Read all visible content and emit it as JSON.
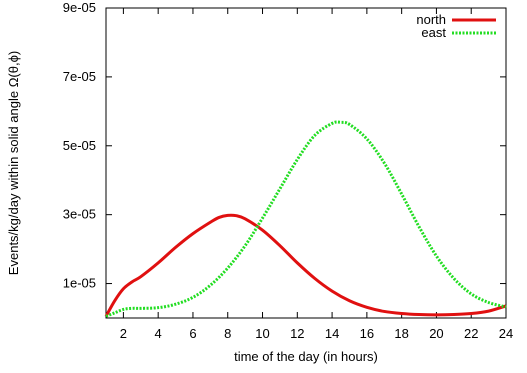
{
  "chart_data": {
    "type": "line",
    "title": "",
    "xlabel": "time of the day (in hours)",
    "ylabel": "Events/kg/day within solid angle Ω(θ,ϕ)",
    "xlim": [
      1,
      24
    ],
    "ylim": [
      0,
      9e-05
    ],
    "xticks": [
      2,
      4,
      6,
      8,
      10,
      12,
      14,
      16,
      18,
      20,
      22,
      24
    ],
    "xtick_labels": [
      "2",
      "4",
      "6",
      "8",
      "10",
      "12",
      "14",
      "16",
      "18",
      "20",
      "22",
      "24"
    ],
    "yticks": [
      1e-05,
      3e-05,
      5e-05,
      7e-05,
      9e-05
    ],
    "ytick_labels": [
      "1e-05",
      "3e-05",
      "5e-05",
      "7e-05",
      "9e-05"
    ],
    "grid": false,
    "legend_position": "top-right",
    "series": [
      {
        "name": "north",
        "color": "#e01010",
        "style": "solid",
        "x": [
          1,
          1.5,
          2,
          2.5,
          3,
          4,
          5,
          6,
          7,
          7.5,
          8,
          8.5,
          9,
          10,
          11,
          12,
          13,
          14,
          15,
          16,
          17,
          18,
          19,
          20,
          21,
          22,
          23,
          24
        ],
        "y": [
          5e-07,
          5e-06,
          8.5e-06,
          1.05e-05,
          1.2e-05,
          1.6e-05,
          2.05e-05,
          2.45e-05,
          2.78e-05,
          2.92e-05,
          2.98e-05,
          2.97e-05,
          2.88e-05,
          2.55e-05,
          2.1e-05,
          1.6e-05,
          1.15e-05,
          7.8e-06,
          5e-06,
          3.1e-06,
          1.9e-06,
          1.3e-06,
          1e-06,
          9e-07,
          1e-06,
          1.3e-06,
          2e-06,
          3.5e-06
        ]
      },
      {
        "name": "east",
        "color": "#22dd22",
        "style": "dotted",
        "x": [
          1,
          1.5,
          2,
          2.5,
          3,
          4,
          5,
          6,
          7,
          8,
          9,
          10,
          11,
          12,
          13,
          14,
          14.5,
          15,
          16,
          17,
          18,
          19,
          20,
          21,
          22,
          23,
          24
        ],
        "y": [
          5e-07,
          1.5e-06,
          2.5e-06,
          2.8e-06,
          2.8e-06,
          3e-06,
          4e-06,
          6e-06,
          9.5e-06,
          1.45e-05,
          2.1e-05,
          2.9e-05,
          3.75e-05,
          4.6e-05,
          5.3e-05,
          5.65e-05,
          5.68e-05,
          5.62e-05,
          5.2e-05,
          4.5e-05,
          3.6e-05,
          2.65e-05,
          1.8e-05,
          1.15e-05,
          7e-06,
          4.5e-06,
          3.2e-06
        ]
      }
    ]
  }
}
